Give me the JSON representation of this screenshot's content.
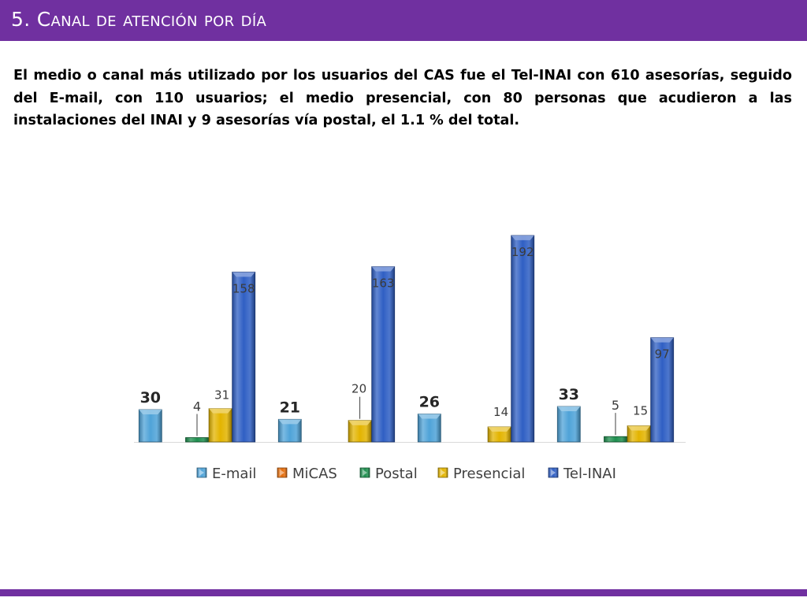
{
  "page": {
    "title": "5. Canal de atención por día",
    "paragraph": "El medio o canal más utilizado por los usuarios del CAS fue el Tel-INAI con 610 asesorías, seguido del E-mail, con 110 usuarios; el medio presencial, con 80 personas que acudieron a las instalaciones del INAI y 9 asesorías vía postal, el 1.1 % del total."
  },
  "colors": {
    "header": "#7030a0",
    "email": "#4fa3d8",
    "micas": "#e46c0a",
    "postal": "#1e8f4e",
    "presencial": "#e3b400",
    "telinai": "#2f5fc4"
  },
  "chart_data": {
    "type": "bar",
    "title": "",
    "xlabel": "",
    "ylabel": "",
    "categories": [
      "",
      "",
      "",
      ""
    ],
    "legend_position": "bottom",
    "grid": false,
    "series": [
      {
        "key": "email",
        "name": "E-mail",
        "icon": "email-legend-icon",
        "values": [
          30,
          21,
          26,
          33
        ],
        "labels": [
          "30",
          "21",
          "26",
          "33"
        ]
      },
      {
        "key": "micas",
        "name": "MiCAS",
        "icon": "micas-legend-icon",
        "values": [
          null,
          null,
          null,
          null
        ],
        "labels": [
          "",
          "",
          "",
          ""
        ]
      },
      {
        "key": "postal",
        "name": "Postal",
        "icon": "postal-legend-icon",
        "values": [
          4,
          null,
          null,
          5
        ],
        "labels": [
          "4",
          "",
          "",
          "5"
        ]
      },
      {
        "key": "presencial",
        "name": "Presencial",
        "icon": "presencial-legend-icon",
        "values": [
          31,
          20,
          14,
          15
        ],
        "labels": [
          "31",
          "20",
          "14",
          "15"
        ]
      },
      {
        "key": "telinai",
        "name": "Tel-INAI",
        "icon": "telinai-legend-icon",
        "values": [
          158,
          163,
          192,
          97
        ],
        "labels": [
          "158",
          "163",
          "192",
          "97"
        ]
      }
    ]
  }
}
